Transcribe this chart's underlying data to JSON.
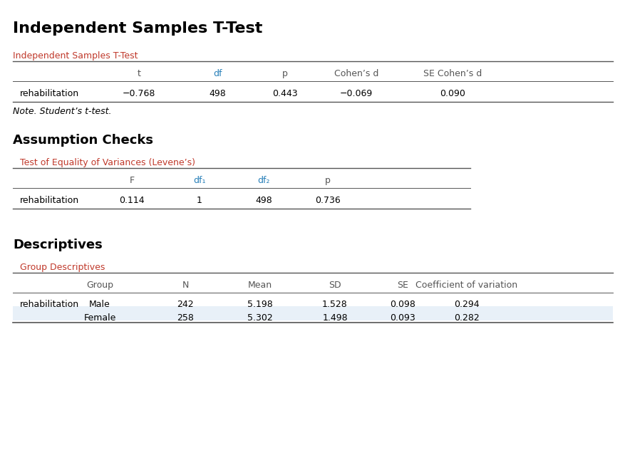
{
  "title": "Independent Samples T-Test",
  "bg_color": "#ffffff",
  "section1_subtitle": "Independent Samples T-Test",
  "ttest_headers": [
    "",
    "t",
    "df",
    "p",
    "Cohen’s d",
    "SE Cohen’s d"
  ],
  "ttest_row": [
    "rehabilitation",
    "−0.768",
    "498",
    "0.443",
    "−0.069",
    "0.090"
  ],
  "ttest_note": "Note. Student’s t-test.",
  "section2_title": "Assumption Checks",
  "levene_subtitle": "Test of Equality of Variances (Levene’s)",
  "levene_headers": [
    "",
    "F",
    "df₁",
    "df₂",
    "p"
  ],
  "levene_row": [
    "rehabilitation",
    "0.114",
    "1",
    "498",
    "0.736"
  ],
  "section3_title": "Descriptives",
  "desc_subtitle": "Group Descriptives",
  "desc_headers": [
    "",
    "Group",
    "N",
    "Mean",
    "SD",
    "SE",
    "Coefficient of variation"
  ],
  "desc_rows": [
    [
      "rehabilitation",
      "Male",
      "242",
      "5.198",
      "1.528",
      "0.098",
      "0.294"
    ],
    [
      "",
      "Female",
      "258",
      "5.302",
      "1.498",
      "0.093",
      "0.282"
    ]
  ],
  "orange_color": "#c0392b",
  "blue_color": "#2980b9",
  "black_color": "#000000",
  "gray_color": "#555555",
  "row_shade": "#e8f0f8",
  "line_color": "#555555"
}
